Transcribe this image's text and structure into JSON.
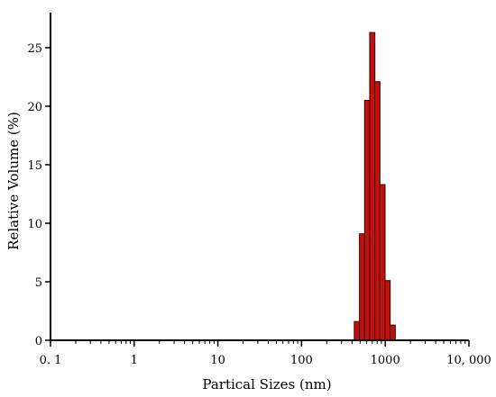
{
  "chart_data": {
    "type": "bar",
    "xlabel": "Partical Sizes (nm)",
    "ylabel": "Relative Volume (%)",
    "x_scale": "log",
    "xlim": [
      0.1,
      10000
    ],
    "ylim": [
      0,
      28
    ],
    "x_ticks": [
      {
        "value": 0.1,
        "label": "0. 1"
      },
      {
        "value": 1,
        "label": "1"
      },
      {
        "value": 10,
        "label": "10"
      },
      {
        "value": 100,
        "label": "100"
      },
      {
        "value": 1000,
        "label": "1000"
      },
      {
        "value": 10000,
        "label": "10, 000"
      }
    ],
    "y_ticks": [
      0,
      5,
      10,
      15,
      20,
      25
    ],
    "grid": false,
    "bar_color": "#c0110f",
    "bar_edge_color": "#3a0000",
    "bars": [
      {
        "x": 458,
        "value": 1.6
      },
      {
        "x": 528,
        "value": 9.1
      },
      {
        "x": 608,
        "value": 20.5
      },
      {
        "x": 700,
        "value": 26.3
      },
      {
        "x": 805,
        "value": 22.1
      },
      {
        "x": 927,
        "value": 13.3
      },
      {
        "x": 1067,
        "value": 5.1
      },
      {
        "x": 1228,
        "value": 1.3
      }
    ]
  }
}
